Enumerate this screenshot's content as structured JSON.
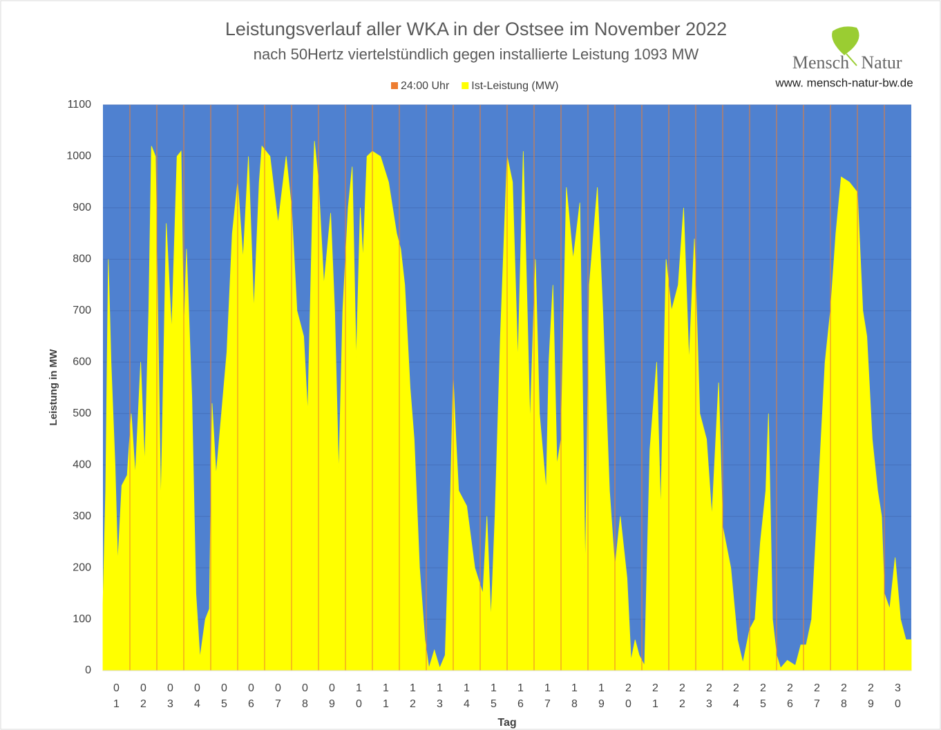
{
  "chart_data": {
    "type": "area",
    "title": "Leistungsverlauf aller WKA in der Ostsee im November 2022",
    "subtitle": "nach 50Hertz viertelstündlich gegen installierte Leistung 1093 MW",
    "annotations": [
      "Mensch",
      "Natur",
      "www. mensch-natur-bw.de"
    ],
    "x_label": "Tag",
    "y_label": "Leistung in MW",
    "xlim": [
      0,
      30
    ],
    "ylim": [
      0,
      1100
    ],
    "yticks": [
      0,
      100,
      200,
      300,
      400,
      500,
      600,
      700,
      800,
      900,
      1000,
      1100
    ],
    "xticks": [
      {
        "value": 0.5,
        "label": "01"
      },
      {
        "value": 1.5,
        "label": "02"
      },
      {
        "value": 2.5,
        "label": "03"
      },
      {
        "value": 3.5,
        "label": "04"
      },
      {
        "value": 4.5,
        "label": "05"
      },
      {
        "value": 5.5,
        "label": "06"
      },
      {
        "value": 6.5,
        "label": "07"
      },
      {
        "value": 7.5,
        "label": "08"
      },
      {
        "value": 8.5,
        "label": "09"
      },
      {
        "value": 9.5,
        "label": "10"
      },
      {
        "value": 10.5,
        "label": "11"
      },
      {
        "value": 11.5,
        "label": "12"
      },
      {
        "value": 12.5,
        "label": "13"
      },
      {
        "value": 13.5,
        "label": "14"
      },
      {
        "value": 14.5,
        "label": "15"
      },
      {
        "value": 15.5,
        "label": "16"
      },
      {
        "value": 16.5,
        "label": "17"
      },
      {
        "value": 17.5,
        "label": "18"
      },
      {
        "value": 18.5,
        "label": "19"
      },
      {
        "value": 19.5,
        "label": "20"
      },
      {
        "value": 20.5,
        "label": "21"
      },
      {
        "value": 21.5,
        "label": "22"
      },
      {
        "value": 22.5,
        "label": "23"
      },
      {
        "value": 23.5,
        "label": "24"
      },
      {
        "value": 24.5,
        "label": "25"
      },
      {
        "value": 25.5,
        "label": "26"
      },
      {
        "value": 26.5,
        "label": "27"
      },
      {
        "value": 27.5,
        "label": "28"
      },
      {
        "value": 28.5,
        "label": "29"
      },
      {
        "value": 29.5,
        "label": "30"
      }
    ],
    "grid": true,
    "plot_background": "#4f81d0",
    "grid_color": "#4571bb",
    "series": [
      {
        "name": "24:00 Uhr",
        "type": "vline",
        "color": "#ed7d31",
        "x": [
          1,
          2,
          3,
          4,
          5,
          6,
          7,
          8,
          9,
          10,
          11,
          12,
          13,
          14,
          15,
          16,
          17,
          18,
          19,
          20,
          21,
          22,
          23,
          24,
          25,
          26,
          27,
          28,
          29
        ]
      },
      {
        "name": "Ist-Leistung (MW)",
        "type": "area",
        "color": "#ffff00",
        "x": [
          0,
          0.1,
          0.2,
          0.3,
          0.45,
          0.55,
          0.7,
          0.9,
          1.05,
          1.2,
          1.4,
          1.55,
          1.7,
          1.8,
          1.95,
          2.05,
          2.15,
          2.35,
          2.55,
          2.75,
          2.9,
          3.0,
          3.1,
          3.3,
          3.45,
          3.6,
          3.8,
          3.95,
          4.05,
          4.2,
          4.4,
          4.6,
          4.8,
          5.0,
          5.2,
          5.4,
          5.6,
          5.8,
          5.9,
          6.2,
          6.5,
          6.8,
          7.0,
          7.2,
          7.45,
          7.6,
          7.8,
          7.85,
          8.0,
          8.2,
          8.45,
          8.6,
          8.75,
          8.9,
          9.1,
          9.25,
          9.4,
          9.55,
          9.65,
          9.8,
          10.0,
          10.3,
          10.6,
          10.9,
          11.05,
          11.2,
          11.4,
          11.55,
          11.75,
          11.95,
          12.1,
          12.3,
          12.5,
          12.7,
          12.9,
          13.0,
          13.1,
          13.2,
          13.5,
          13.8,
          14.1,
          14.25,
          14.4,
          14.55,
          14.75,
          15.0,
          15.2,
          15.4,
          15.6,
          15.7,
          15.85,
          16.05,
          16.2,
          16.45,
          16.55,
          16.7,
          16.85,
          17.0,
          17.2,
          17.45,
          17.7,
          17.9,
          18.05,
          18.35,
          18.55,
          18.8,
          19.0,
          19.2,
          19.45,
          19.6,
          19.75,
          19.9,
          20.1,
          20.3,
          20.55,
          20.7,
          20.9,
          21.1,
          21.35,
          21.55,
          21.75,
          21.95,
          22.15,
          22.4,
          22.6,
          22.85,
          23.0,
          23.3,
          23.55,
          23.75,
          24.0,
          24.2,
          24.4,
          24.6,
          24.7,
          24.85,
          25.0,
          25.15,
          25.4,
          25.7,
          25.9,
          26.1,
          26.3,
          26.55,
          26.8,
          27.0,
          27.2,
          27.4,
          27.7,
          28.0,
          28.2,
          28.35,
          28.55,
          28.75,
          28.9,
          29.0,
          29.2,
          29.4,
          29.6,
          29.8,
          30.0
        ],
        "values": [
          130,
          350,
          800,
          600,
          400,
          210,
          360,
          380,
          500,
          380,
          600,
          400,
          700,
          1020,
          1000,
          650,
          320,
          870,
          660,
          1000,
          1010,
          650,
          820,
          530,
          150,
          25,
          100,
          120,
          520,
          380,
          500,
          620,
          850,
          950,
          800,
          1000,
          700,
          950,
          1020,
          1000,
          870,
          1000,
          900,
          700,
          650,
          500,
          950,
          1030,
          950,
          750,
          890,
          700,
          380,
          700,
          900,
          980,
          600,
          900,
          800,
          1000,
          1010,
          1000,
          950,
          850,
          820,
          750,
          550,
          450,
          200,
          60,
          5,
          40,
          5,
          30,
          350,
          570,
          450,
          350,
          320,
          200,
          150,
          300,
          100,
          300,
          650,
          1000,
          950,
          600,
          1010,
          800,
          480,
          800,
          500,
          350,
          600,
          750,
          400,
          450,
          940,
          800,
          910,
          190,
          750,
          940,
          700,
          350,
          200,
          300,
          180,
          20,
          60,
          30,
          10,
          430,
          600,
          310,
          800,
          700,
          750,
          900,
          600,
          840,
          500,
          450,
          300,
          560,
          280,
          200,
          60,
          15,
          80,
          100,
          250,
          350,
          500,
          100,
          30,
          5,
          20,
          10,
          50,
          50,
          100,
          350,
          600,
          700,
          850,
          960,
          950,
          930,
          700,
          650,
          450,
          350,
          300,
          150,
          120,
          220,
          100,
          60,
          60
        ]
      }
    ]
  }
}
